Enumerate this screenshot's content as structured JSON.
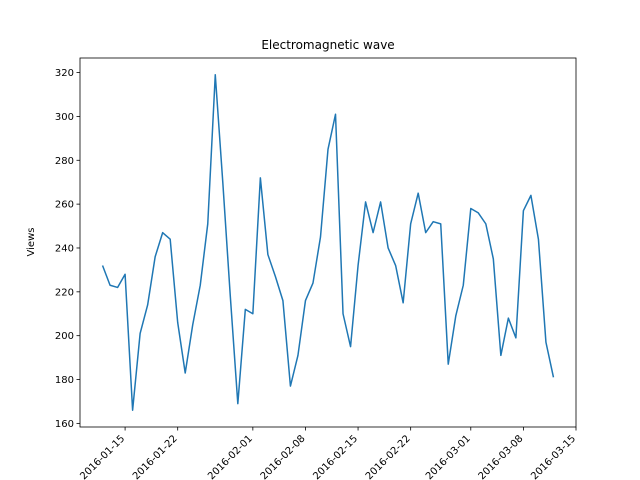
{
  "chart_data": {
    "type": "line",
    "title": "Electromagnetic wave",
    "ylabel": "Views",
    "x": [
      "2016-01-12",
      "2016-01-13",
      "2016-01-14",
      "2016-01-15",
      "2016-01-16",
      "2016-01-17",
      "2016-01-18",
      "2016-01-19",
      "2016-01-20",
      "2016-01-21",
      "2016-01-22",
      "2016-01-23",
      "2016-01-24",
      "2016-01-25",
      "2016-01-26",
      "2016-01-27",
      "2016-01-28",
      "2016-01-29",
      "2016-01-30",
      "2016-01-31",
      "2016-02-01",
      "2016-02-02",
      "2016-02-03",
      "2016-02-04",
      "2016-02-05",
      "2016-02-06",
      "2016-02-07",
      "2016-02-08",
      "2016-02-09",
      "2016-02-10",
      "2016-02-11",
      "2016-02-12",
      "2016-02-13",
      "2016-02-14",
      "2016-02-15",
      "2016-02-16",
      "2016-02-17",
      "2016-02-18",
      "2016-02-19",
      "2016-02-20",
      "2016-02-21",
      "2016-02-22",
      "2016-02-23",
      "2016-02-24",
      "2016-02-25",
      "2016-02-26",
      "2016-02-27",
      "2016-02-28",
      "2016-02-29",
      "2016-03-01",
      "2016-03-02",
      "2016-03-03",
      "2016-03-04",
      "2016-03-05",
      "2016-03-06",
      "2016-03-07",
      "2016-03-08",
      "2016-03-09",
      "2016-03-10",
      "2016-03-11",
      "2016-03-12"
    ],
    "series": [
      {
        "name": "Views",
        "color": "#1f77b4",
        "values": [
          232,
          223,
          222,
          228,
          166,
          201,
          214,
          236,
          247,
          244,
          206,
          183,
          205,
          223,
          251,
          319,
          270,
          218,
          169,
          212,
          210,
          272,
          237,
          227,
          216,
          177,
          191,
          216,
          224,
          245,
          285,
          301,
          210,
          195,
          232,
          261,
          247,
          261,
          240,
          232,
          215,
          251,
          265,
          247,
          252,
          251,
          187,
          209,
          223,
          258,
          256,
          251,
          235,
          191,
          208,
          199,
          257,
          264,
          244,
          197,
          181
        ]
      }
    ],
    "xlim": [
      "2016-01-09",
      "2016-03-15"
    ],
    "xticks": [
      "2016-01-15",
      "2016-01-22",
      "2016-02-01",
      "2016-02-08",
      "2016-02-15",
      "2016-02-22",
      "2016-03-01",
      "2016-03-08",
      "2016-03-15"
    ],
    "ylim": [
      158.35,
      326.65
    ],
    "yticks": [
      160,
      180,
      200,
      220,
      240,
      260,
      280,
      300,
      320
    ]
  }
}
